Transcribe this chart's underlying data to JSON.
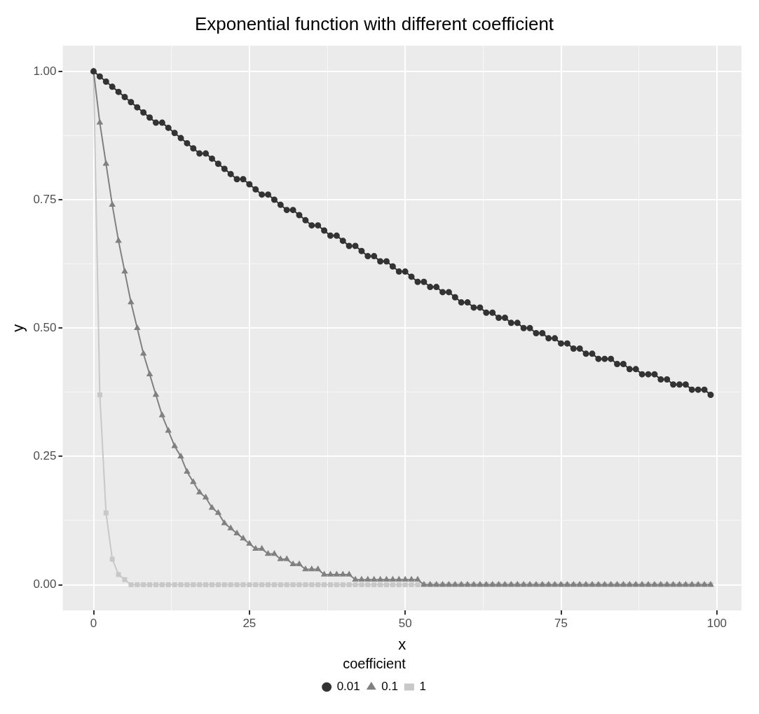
{
  "chart_data": {
    "type": "line",
    "title": "Exponential function with different coefficient",
    "xlabel": "x",
    "ylabel": "y",
    "legend_title": "coefficient",
    "legend": "bottom",
    "grid": true,
    "x": [
      0,
      1,
      2,
      3,
      4,
      5,
      6,
      7,
      8,
      9,
      10,
      11,
      12,
      13,
      14,
      15,
      16,
      17,
      18,
      19,
      20,
      21,
      22,
      23,
      24,
      25,
      26,
      27,
      28,
      29,
      30,
      31,
      32,
      33,
      34,
      35,
      36,
      37,
      38,
      39,
      40,
      41,
      42,
      43,
      44,
      45,
      46,
      47,
      48,
      49,
      50,
      51,
      52,
      53,
      54,
      55,
      56,
      57,
      58,
      59,
      60,
      61,
      62,
      63,
      64,
      65,
      66,
      67,
      68,
      69,
      70,
      71,
      72,
      73,
      74,
      75,
      76,
      77,
      78,
      79,
      80,
      81,
      82,
      83,
      84,
      85,
      86,
      87,
      88,
      89,
      90,
      91,
      92,
      93,
      94,
      95,
      96,
      97,
      98,
      99
    ],
    "xlim": [
      -4.95,
      103.95
    ],
    "xticks": [
      0,
      {
        "value": 12.5,
        "label": null
      },
      25,
      {
        "value": 37.5,
        "label": null
      },
      50,
      {
        "value": 62.5,
        "label": null
      },
      75,
      {
        "value": 87.5,
        "label": null
      },
      100
    ],
    "ylim": [
      -0.05,
      1.05
    ],
    "yticks": [
      "0.00",
      {
        "value": 0.125,
        "label": null
      },
      {
        "value": 0.25,
        "label": "0.25"
      },
      {
        "value": 0.375,
        "label": null
      },
      {
        "value": 0.5,
        "label": "0.50"
      },
      {
        "value": 0.625,
        "label": null
      },
      {
        "value": 0.75,
        "label": "0.75"
      },
      {
        "value": 0.875,
        "label": null
      },
      {
        "value": 1,
        "label": "1.00"
      }
    ],
    "series": [
      {
        "name": "0.01",
        "color": "#333333",
        "marker": "circle",
        "values": [
          1.0,
          0.99,
          0.98,
          0.97,
          0.96,
          0.95,
          0.94,
          0.93,
          0.92,
          0.91,
          0.9,
          0.9,
          0.89,
          0.88,
          0.87,
          0.86,
          0.85,
          0.84,
          0.84,
          0.83,
          0.82,
          0.81,
          0.8,
          0.79,
          0.79,
          0.78,
          0.77,
          0.76,
          0.76,
          0.75,
          0.74,
          0.73,
          0.73,
          0.72,
          0.71,
          0.7,
          0.7,
          0.69,
          0.68,
          0.68,
          0.67,
          0.66,
          0.66,
          0.65,
          0.64,
          0.64,
          0.63,
          0.63,
          0.62,
          0.61,
          0.61,
          0.6,
          0.59,
          0.59,
          0.58,
          0.58,
          0.57,
          0.57,
          0.56,
          0.55,
          0.55,
          0.54,
          0.54,
          0.53,
          0.53,
          0.52,
          0.52,
          0.51,
          0.51,
          0.5,
          0.5,
          0.49,
          0.49,
          0.48,
          0.48,
          0.47,
          0.47,
          0.46,
          0.46,
          0.45,
          0.45,
          0.44,
          0.44,
          0.44,
          0.43,
          0.43,
          0.42,
          0.42,
          0.41,
          0.41,
          0.41,
          0.4,
          0.4,
          0.39,
          0.39,
          0.39,
          0.38,
          0.38,
          0.38,
          0.37
        ]
      },
      {
        "name": "0.1",
        "color": "#808080",
        "marker": "triangle",
        "values": [
          1.0,
          0.9,
          0.82,
          0.74,
          0.67,
          0.61,
          0.55,
          0.5,
          0.45,
          0.41,
          0.37,
          0.33,
          0.3,
          0.27,
          0.25,
          0.22,
          0.2,
          0.18,
          0.17,
          0.15,
          0.14,
          0.12,
          0.11,
          0.1,
          0.09,
          0.08,
          0.07,
          0.07,
          0.06,
          0.06,
          0.05,
          0.05,
          0.04,
          0.04,
          0.03,
          0.03,
          0.03,
          0.02,
          0.02,
          0.02,
          0.02,
          0.02,
          0.01,
          0.01,
          0.01,
          0.01,
          0.01,
          0.01,
          0.01,
          0.01,
          0.01,
          0.01,
          0.01,
          0,
          0,
          0,
          0,
          0,
          0,
          0,
          0,
          0,
          0,
          0,
          0,
          0,
          0,
          0,
          0,
          0,
          0,
          0,
          0,
          0,
          0,
          0,
          0,
          0,
          0,
          0,
          0,
          0,
          0,
          0,
          0,
          0,
          0,
          0,
          0,
          0,
          0,
          0,
          0,
          0,
          0,
          0,
          0,
          0,
          0,
          0
        ]
      },
      {
        "name": "1",
        "color": "#c8c8c8",
        "marker": "square",
        "values": [
          1.0,
          0.37,
          0.14,
          0.05,
          0.02,
          0.01,
          0,
          0,
          0,
          0,
          0,
          0,
          0,
          0,
          0,
          0,
          0,
          0,
          0,
          0,
          0,
          0,
          0,
          0,
          0,
          0,
          0,
          0,
          0,
          0,
          0,
          0,
          0,
          0,
          0,
          0,
          0,
          0,
          0,
          0,
          0,
          0,
          0,
          0,
          0,
          0,
          0,
          0,
          0,
          0,
          0,
          0,
          0,
          0,
          0,
          0,
          0,
          0,
          0,
          0,
          0,
          0,
          0,
          0,
          0,
          0,
          0,
          0,
          0,
          0,
          0,
          0,
          0,
          0,
          0,
          0,
          0,
          0,
          0,
          0,
          0,
          0,
          0,
          0,
          0,
          0,
          0,
          0,
          0,
          0,
          0,
          0,
          0,
          0,
          0,
          0,
          0,
          0,
          0,
          0
        ]
      }
    ]
  }
}
